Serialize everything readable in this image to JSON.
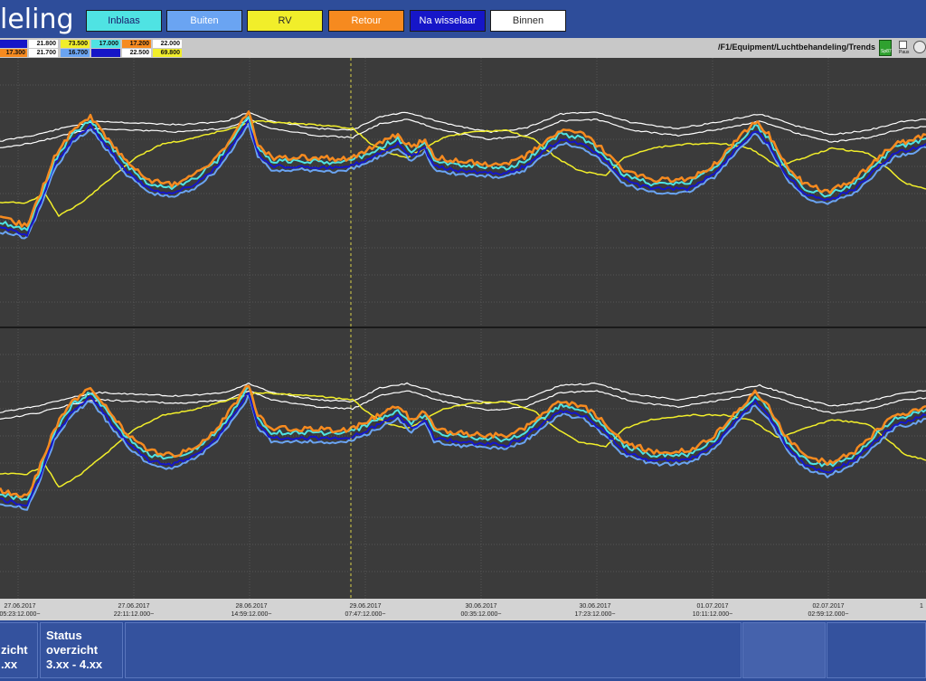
{
  "header": {
    "title": "leling",
    "legend": [
      {
        "label": "Inblaas",
        "color": "#4fe3e3"
      },
      {
        "label": "Buiten",
        "color": "#6aa4f2"
      },
      {
        "label": "RV",
        "color": "#f1ee2a"
      },
      {
        "label": "Retour",
        "color": "#f68a1f"
      },
      {
        "label": "Na wisselaar",
        "color": "#1616c8"
      },
      {
        "label": "Binnen",
        "color": "#ffffff"
      }
    ]
  },
  "value_bar": {
    "row1": [
      "",
      "21.800",
      "73.500",
      "17.000",
      "17.200",
      "22.000"
    ],
    "row2": [
      "17.300",
      "21.700",
      "16.700",
      "",
      "22.500",
      "69.800"
    ],
    "breadcrumb": "/F1/Equipment/Luchtbehandeling/Trends",
    "run_label": "Sp87",
    "pause_label": "Paus"
  },
  "time_axis": [
    {
      "date": "27.06.2017",
      "time": "05:23:12.000~"
    },
    {
      "date": "27.06.2017",
      "time": "22:11:12.000~"
    },
    {
      "date": "28.06.2017",
      "time": "14:59:12.000~"
    },
    {
      "date": "29.06.2017",
      "time": "07:47:12.000~"
    },
    {
      "date": "30.06.2017",
      "time": "00:35:12.000~"
    },
    {
      "date": "30.06.2017",
      "time": "17:23:12.000~"
    },
    {
      "date": "01.07.2017",
      "time": "10:11:12.000~"
    },
    {
      "date": "02.07.2017",
      "time": "02:59:12.000~"
    },
    {
      "date": "",
      "time": "1"
    }
  ],
  "footer": {
    "buttons": [
      {
        "line1": "zicht",
        "line2": ".xx"
      },
      {
        "line1": "Status",
        "line2": "overzicht",
        "line3": "3.xx - 4.xx"
      }
    ]
  },
  "chart_data": {
    "type": "line",
    "panels": 2,
    "series": [
      {
        "name": "Inblaas",
        "color": "#4fe3e3"
      },
      {
        "name": "Buiten",
        "color": "#6aa4f2"
      },
      {
        "name": "RV",
        "color": "#f1ee2a"
      },
      {
        "name": "Retour",
        "color": "#f68a1f"
      },
      {
        "name": "Na wisselaar",
        "color": "#1616c8"
      },
      {
        "name": "Binnen",
        "color": "#ffffff"
      }
    ],
    "grid": true,
    "cursor_time": "29.06.2017 07:47:12"
  }
}
